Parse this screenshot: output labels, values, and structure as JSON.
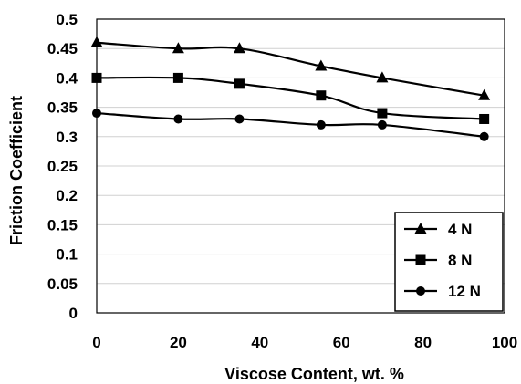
{
  "chart_data": {
    "type": "line",
    "title": "",
    "xlabel": "Viscose Content, wt. %",
    "ylabel": "Friction Coefficient",
    "xlim": [
      0,
      100
    ],
    "ylim": [
      0,
      0.5
    ],
    "x_ticks": [
      "0",
      "20",
      "40",
      "60",
      "80",
      "100"
    ],
    "y_ticks": [
      "0",
      "0.05",
      "0.1",
      "0.15",
      "0.2",
      "0.25",
      "0.3",
      "0.35",
      "0.4",
      "0.45",
      "0.5"
    ],
    "grid": "horizontal",
    "legend_position": "bottom-right",
    "series": [
      {
        "name": "4 N",
        "marker": "triangle",
        "x": [
          0,
          20,
          35,
          55,
          70,
          95
        ],
        "y": [
          0.46,
          0.45,
          0.45,
          0.42,
          0.4,
          0.37
        ]
      },
      {
        "name": "8 N",
        "marker": "square",
        "x": [
          0,
          20,
          35,
          55,
          70,
          95
        ],
        "y": [
          0.4,
          0.4,
          0.39,
          0.37,
          0.34,
          0.33
        ]
      },
      {
        "name": "12 N",
        "marker": "circle",
        "x": [
          0,
          20,
          35,
          55,
          70,
          95
        ],
        "y": [
          0.34,
          0.33,
          0.33,
          0.32,
          0.32,
          0.3
        ]
      }
    ]
  }
}
